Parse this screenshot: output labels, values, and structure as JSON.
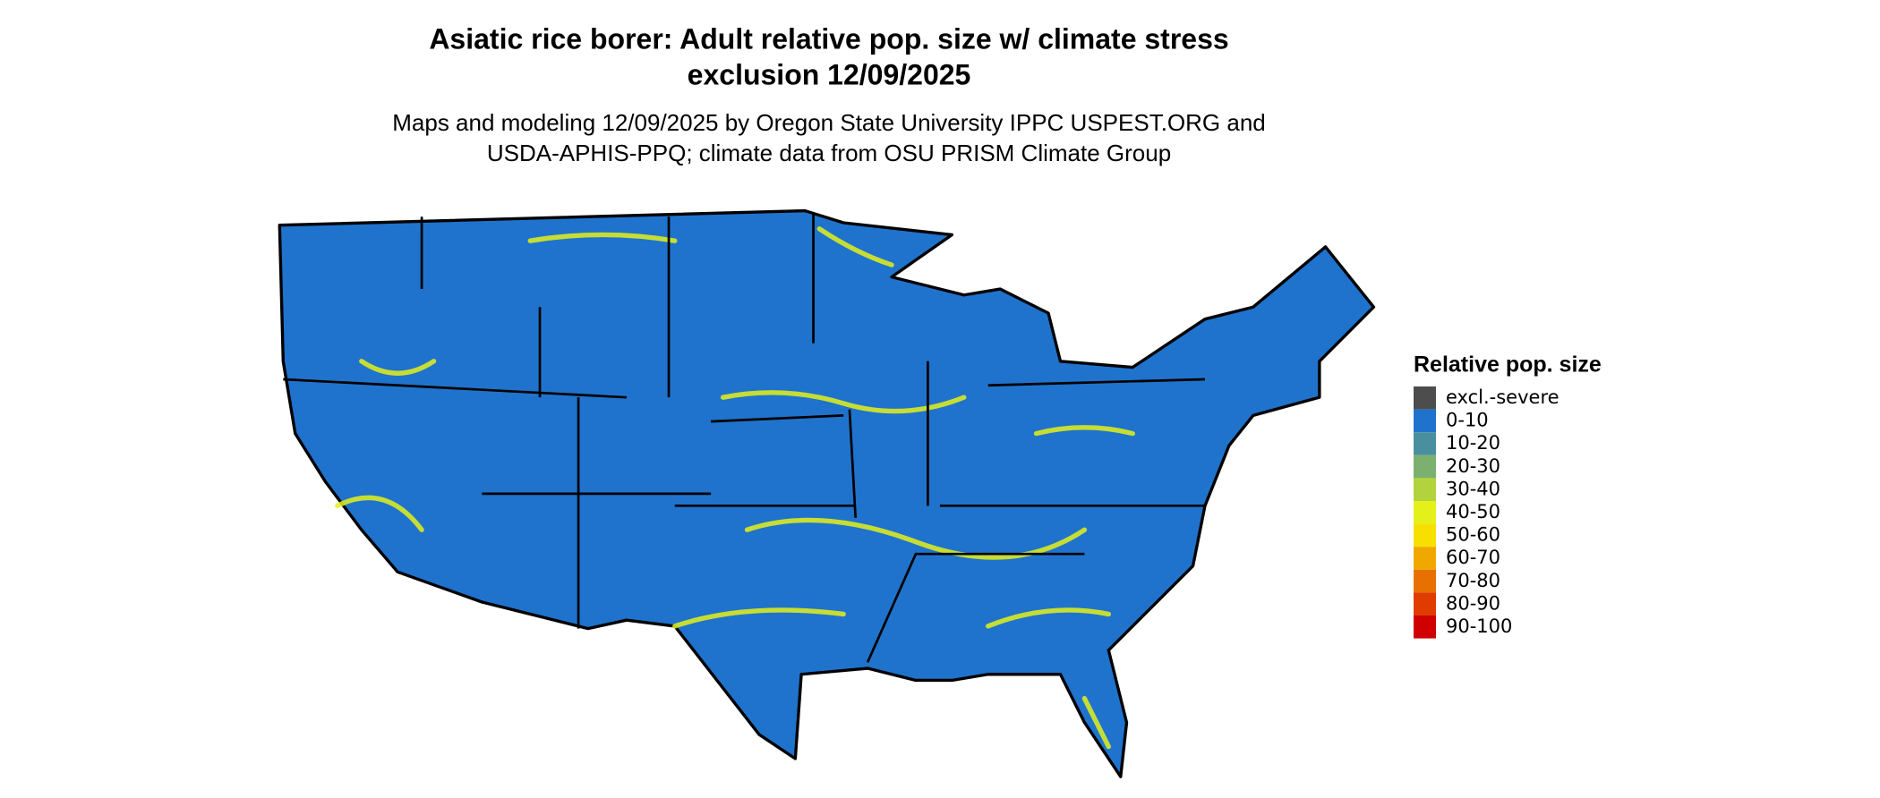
{
  "title": [
    "Asiatic rice borer: Adult relative pop. size w/ climate stress",
    "exclusion 12/09/2025"
  ],
  "subtitle": [
    "Maps and modeling 12/09/2025 by Oregon State University IPPC USPEST.ORG and",
    "USDA-APHIS-PPQ; climate data from OSU PRISM Climate Group"
  ],
  "legend": {
    "title": "Relative pop. size",
    "items": [
      {
        "label": "excl.-severe",
        "color": "#4d4d4d"
      },
      {
        "label": "0-10",
        "color": "#1f73cc"
      },
      {
        "label": "10-20",
        "color": "#4a8fa0"
      },
      {
        "label": "20-30",
        "color": "#7cb06e"
      },
      {
        "label": "30-40",
        "color": "#b2d33d"
      },
      {
        "label": "40-50",
        "color": "#e4f01a"
      },
      {
        "label": "50-60",
        "color": "#f7e000"
      },
      {
        "label": "60-70",
        "color": "#f0a800"
      },
      {
        "label": "70-80",
        "color": "#e87000"
      },
      {
        "label": "80-90",
        "color": "#e03c00"
      },
      {
        "label": "90-100",
        "color": "#d10000"
      }
    ]
  }
}
